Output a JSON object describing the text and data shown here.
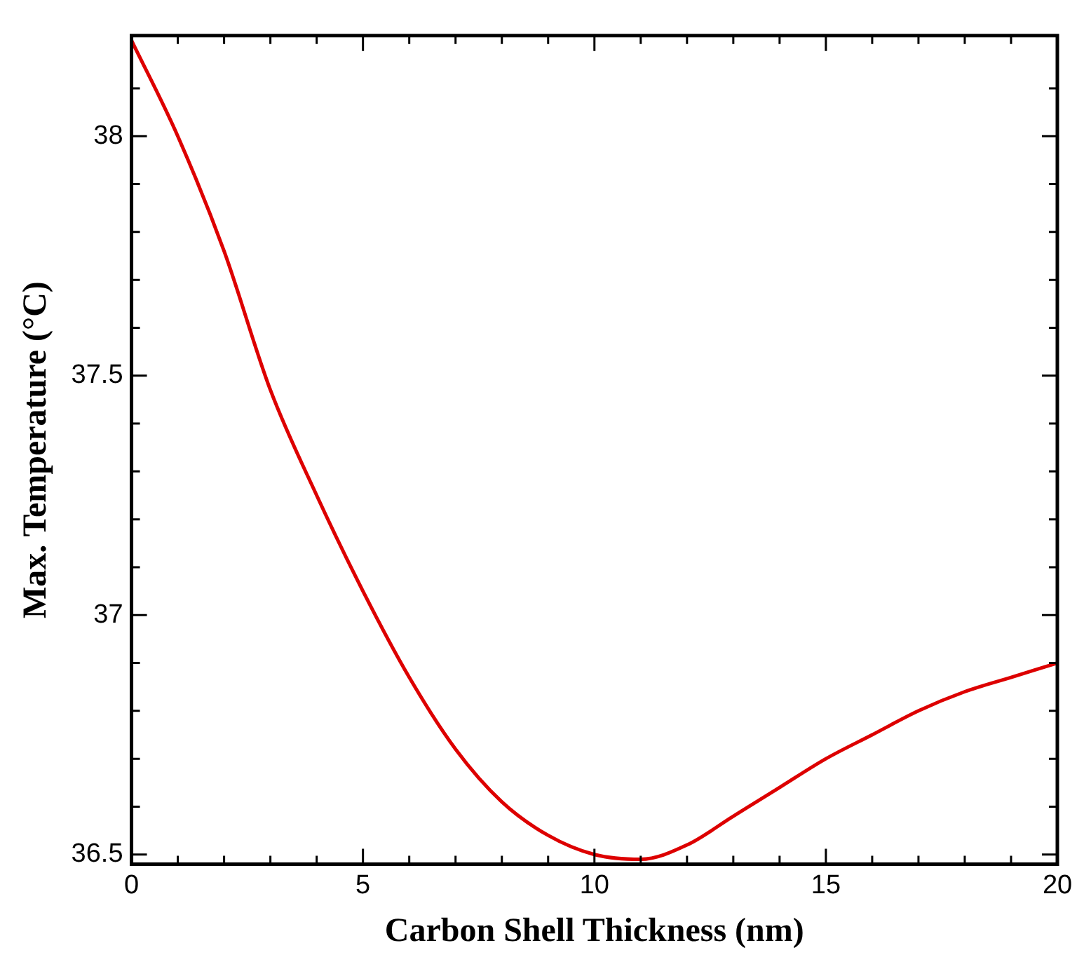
{
  "chart_data": {
    "type": "line",
    "xlabel": "Carbon Shell Thickness (nm)",
    "ylabel": "Max. Temperature (°C)",
    "x": [
      0,
      1,
      2,
      3,
      4,
      5,
      6,
      7,
      8,
      9,
      10,
      11,
      12,
      13,
      14,
      15,
      16,
      17,
      18,
      19,
      20
    ],
    "series": [
      {
        "color": "#dd0000",
        "values": [
          38.2,
          38.0,
          37.76,
          37.47,
          37.25,
          37.05,
          36.87,
          36.72,
          36.61,
          36.54,
          36.5,
          36.49,
          36.52,
          36.58,
          36.64,
          36.7,
          36.75,
          36.8,
          36.84,
          36.87,
          36.9
        ]
      }
    ],
    "xlim": [
      0,
      20
    ],
    "ylim": [
      36.48,
      38.21
    ],
    "xticks": [
      0,
      {
        "value": 1,
        "label": null
      },
      {
        "value": 2,
        "label": null
      },
      {
        "value": 3,
        "label": null
      },
      {
        "value": 4,
        "label": null
      },
      5,
      {
        "value": 6,
        "label": null
      },
      {
        "value": 7,
        "label": null
      },
      {
        "value": 8,
        "label": null
      },
      {
        "value": 9,
        "label": null
      },
      10,
      {
        "value": 11,
        "label": null
      },
      {
        "value": 12,
        "label": null
      },
      {
        "value": 13,
        "label": null
      },
      {
        "value": 14,
        "label": null
      },
      15,
      {
        "value": 16,
        "label": null
      },
      {
        "value": 17,
        "label": null
      },
      {
        "value": 18,
        "label": null
      },
      {
        "value": 19,
        "label": null
      },
      20
    ],
    "yticks": [
      36.5,
      {
        "value": 36.6,
        "label": null
      },
      {
        "value": 36.7,
        "label": null
      },
      {
        "value": 36.8,
        "label": null
      },
      {
        "value": 36.9,
        "label": null
      },
      37,
      {
        "value": 37.1,
        "label": null
      },
      {
        "value": 37.2,
        "label": null
      },
      {
        "value": 37.3,
        "label": null
      },
      {
        "value": 37.4,
        "label": null
      },
      37.5,
      {
        "value": 37.6,
        "label": null
      },
      {
        "value": 37.7,
        "label": null
      },
      {
        "value": 37.8,
        "label": null
      },
      {
        "value": 37.9,
        "label": null
      },
      38,
      {
        "value": 38.1,
        "label": null
      }
    ],
    "grid": false,
    "legend": false,
    "marker": "none",
    "line_style": "solid"
  }
}
